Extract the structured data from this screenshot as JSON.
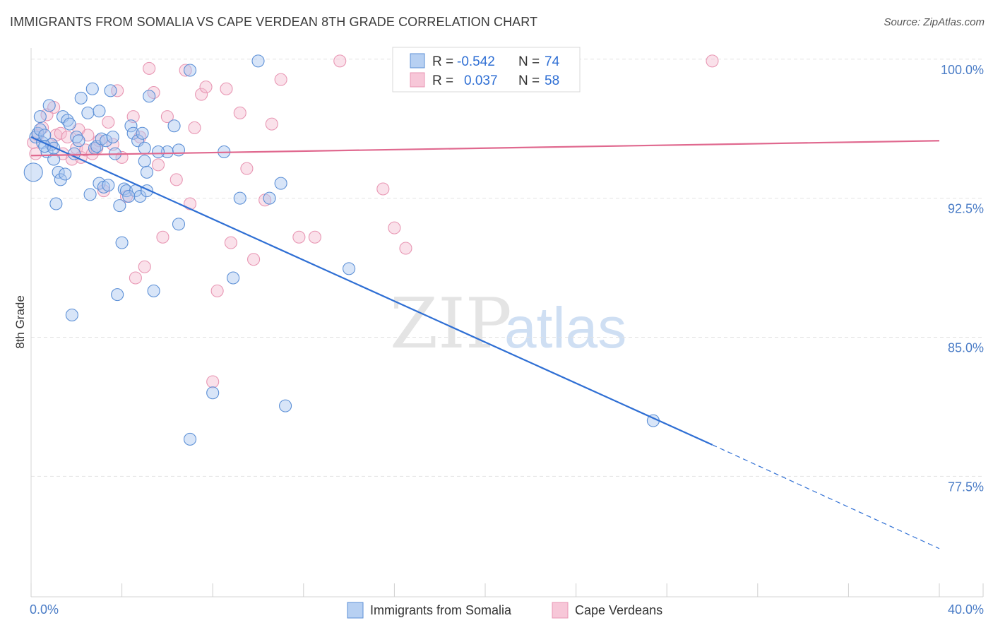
{
  "title": "IMMIGRANTS FROM SOMALIA VS CAPE VERDEAN 8TH GRADE CORRELATION CHART",
  "source": "Source: ZipAtlas.com",
  "watermark": {
    "zip": "ZIP",
    "atlas": "atlas"
  },
  "legend_top": [
    {
      "r_label": "R =",
      "r_value": "-0.542",
      "n_label": "N =",
      "n_value": "74"
    },
    {
      "r_label": "R =",
      "r_value": "0.037",
      "n_label": "N =",
      "n_value": "58"
    }
  ],
  "legend_bottom": [
    "Immigrants from Somalia",
    "Cape Verdeans"
  ],
  "chart_data": {
    "type": "scatter",
    "xlabel": "",
    "ylabel": "8th Grade",
    "xlim": [
      0,
      40
    ],
    "ylim": [
      71.0,
      100.6
    ],
    "x_tick_labels": [
      "0.0%",
      "40.0%"
    ],
    "y_ticks": [
      77.5,
      85.0,
      92.5,
      100.0
    ],
    "y_tick_labels": [
      "77.5%",
      "85.0%",
      "92.5%",
      "100.0%"
    ],
    "grid": true,
    "legend_placement": "bottom-center",
    "colors": {
      "blue_fill": "#a9c6ef",
      "blue_stroke": "#5b8fd6",
      "blue_line": "#2f6fd4",
      "pink_fill": "#f5bcd0",
      "pink_stroke": "#e896b3",
      "pink_line": "#e0698f",
      "tick_label": "#4a7cc6"
    },
    "series": [
      {
        "name": "Immigrants from Somalia",
        "color": "blue",
        "trend": {
          "x0": 0,
          "y0": 95.8,
          "x1": 30.0,
          "y1": 79.2,
          "dash_to_x": 40.0,
          "dash_to_y": 73.6
        },
        "points": [
          [
            0.1,
            93.9
          ],
          [
            0.2,
            95.8
          ],
          [
            0.3,
            96.0
          ],
          [
            0.4,
            96.2
          ],
          [
            0.5,
            95.5
          ],
          [
            0.4,
            96.9
          ],
          [
            0.6,
            95.9
          ],
          [
            0.7,
            95.0
          ],
          [
            0.8,
            97.5
          ],
          [
            0.9,
            95.4
          ],
          [
            1.0,
            94.6
          ],
          [
            1.1,
            92.2
          ],
          [
            1.2,
            93.9
          ],
          [
            1.3,
            93.5
          ],
          [
            1.4,
            96.9
          ],
          [
            1.5,
            93.8
          ],
          [
            1.6,
            96.7
          ],
          [
            1.7,
            96.5
          ],
          [
            1.8,
            86.2
          ],
          [
            2.0,
            95.8
          ],
          [
            2.2,
            97.9
          ],
          [
            2.5,
            97.1
          ],
          [
            2.6,
            92.7
          ],
          [
            2.7,
            98.4
          ],
          [
            2.8,
            95.2
          ],
          [
            2.9,
            95.3
          ],
          [
            3.0,
            93.3
          ],
          [
            3.1,
            95.7
          ],
          [
            3.2,
            93.1
          ],
          [
            3.3,
            95.6
          ],
          [
            3.4,
            93.2
          ],
          [
            3.5,
            98.3
          ],
          [
            3.6,
            95.8
          ],
          [
            3.7,
            94.9
          ],
          [
            3.8,
            87.3
          ],
          [
            3.9,
            92.1
          ],
          [
            4.0,
            90.1
          ],
          [
            4.1,
            93.0
          ],
          [
            4.2,
            92.9
          ],
          [
            4.4,
            96.4
          ],
          [
            4.5,
            96.0
          ],
          [
            4.6,
            92.9
          ],
          [
            4.7,
            95.6
          ],
          [
            4.8,
            92.6
          ],
          [
            4.9,
            96.0
          ],
          [
            5.0,
            94.5
          ],
          [
            5.1,
            93.9
          ],
          [
            5.1,
            92.9
          ],
          [
            5.2,
            98.0
          ],
          [
            5.4,
            87.5
          ],
          [
            5.0,
            95.2
          ],
          [
            6.0,
            95.0
          ],
          [
            6.3,
            96.4
          ],
          [
            6.5,
            95.1
          ],
          [
            7.0,
            79.5
          ],
          [
            6.5,
            91.1
          ],
          [
            7.0,
            99.4
          ],
          [
            8.0,
            82.0
          ],
          [
            8.9,
            88.2
          ],
          [
            8.5,
            95.0
          ],
          [
            9.2,
            92.5
          ],
          [
            10.5,
            92.5
          ],
          [
            10.0,
            99.9
          ],
          [
            11.0,
            93.3
          ],
          [
            11.2,
            81.3
          ],
          [
            14.0,
            88.7
          ],
          [
            27.4,
            80.5
          ],
          [
            0.6,
            95.3
          ],
          [
            1.0,
            95.2
          ],
          [
            2.1,
            95.6
          ],
          [
            1.9,
            94.9
          ],
          [
            3.0,
            97.2
          ],
          [
            4.3,
            92.6
          ],
          [
            5.6,
            95.0
          ]
        ]
      },
      {
        "name": "Cape Verdeans",
        "color": "pink",
        "trend": {
          "x0": 0,
          "y0": 94.8,
          "x1": 40.0,
          "y1": 95.6
        },
        "points": [
          [
            0.1,
            95.5
          ],
          [
            0.2,
            94.9
          ],
          [
            0.3,
            95.9
          ],
          [
            0.5,
            96.3
          ],
          [
            0.7,
            97.0
          ],
          [
            0.9,
            95.4
          ],
          [
            1.0,
            97.4
          ],
          [
            1.1,
            95.9
          ],
          [
            1.3,
            96.0
          ],
          [
            1.4,
            94.9
          ],
          [
            1.6,
            95.8
          ],
          [
            1.8,
            94.6
          ],
          [
            2.0,
            95.2
          ],
          [
            2.1,
            96.2
          ],
          [
            2.2,
            94.7
          ],
          [
            2.4,
            95.1
          ],
          [
            2.5,
            95.9
          ],
          [
            2.7,
            94.9
          ],
          [
            2.9,
            95.2
          ],
          [
            3.0,
            95.6
          ],
          [
            3.2,
            92.9
          ],
          [
            3.4,
            96.6
          ],
          [
            3.6,
            95.4
          ],
          [
            3.8,
            98.3
          ],
          [
            4.0,
            94.7
          ],
          [
            4.2,
            92.6
          ],
          [
            4.5,
            96.9
          ],
          [
            4.6,
            88.2
          ],
          [
            4.8,
            95.8
          ],
          [
            5.0,
            88.8
          ],
          [
            5.2,
            99.5
          ],
          [
            5.4,
            98.2
          ],
          [
            5.6,
            94.3
          ],
          [
            5.8,
            90.4
          ],
          [
            6.0,
            96.9
          ],
          [
            6.4,
            93.5
          ],
          [
            6.8,
            99.4
          ],
          [
            7.0,
            92.2
          ],
          [
            7.2,
            96.3
          ],
          [
            7.5,
            98.1
          ],
          [
            7.7,
            98.5
          ],
          [
            8.0,
            82.6
          ],
          [
            8.2,
            87.5
          ],
          [
            8.6,
            98.4
          ],
          [
            8.8,
            90.1
          ],
          [
            9.2,
            97.1
          ],
          [
            9.5,
            94.1
          ],
          [
            9.8,
            89.2
          ],
          [
            10.3,
            92.4
          ],
          [
            10.6,
            96.5
          ],
          [
            11.0,
            98.9
          ],
          [
            11.8,
            90.4
          ],
          [
            12.5,
            90.4
          ],
          [
            13.6,
            99.9
          ],
          [
            15.5,
            93.0
          ],
          [
            16.0,
            90.9
          ],
          [
            16.5,
            89.8
          ],
          [
            30.0,
            99.9
          ]
        ]
      }
    ]
  }
}
